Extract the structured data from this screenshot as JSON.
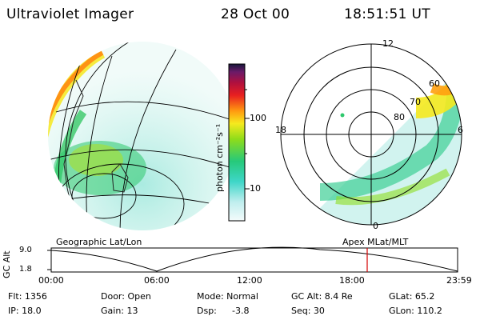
{
  "header": {
    "instrument": "Ultraviolet Imager",
    "date": "28 Oct 00",
    "time": "18:51:51 UT"
  },
  "colorbar": {
    "unit_label": "photon cm⁻²s⁻¹",
    "ticks": [
      "100",
      "10"
    ]
  },
  "polar_plot": {
    "mlt_labels": {
      "top": "12",
      "left": "18",
      "right": "6",
      "bottom": "0"
    },
    "lat_labels": [
      "60",
      "70",
      "80"
    ]
  },
  "panel_labels": {
    "left": "Geographic Lat/Lon",
    "right": "Apex MLat/MLT"
  },
  "altitude_plot": {
    "ylabel": "GC Alt",
    "yticks": [
      "9.0",
      "1.8"
    ],
    "xticks": [
      "00:00",
      "06:00",
      "12:00",
      "18:00",
      "23:59"
    ]
  },
  "status": {
    "flt": "Flt: 1356",
    "ip": "IP: 18.0",
    "door": "Door: Open",
    "gain": "Gain: 13",
    "mode": "Mode: Normal",
    "dsp": "Dsp:",
    "dsp_val": "-3.8",
    "gc_alt": "GC Alt: 8.4 Re",
    "seq": "Seq: 30",
    "glat": "GLat:  65.2",
    "glon": "GLon: 110.2"
  },
  "colors": {
    "background": "#ffffff",
    "current_time_marker": "#d40000"
  }
}
